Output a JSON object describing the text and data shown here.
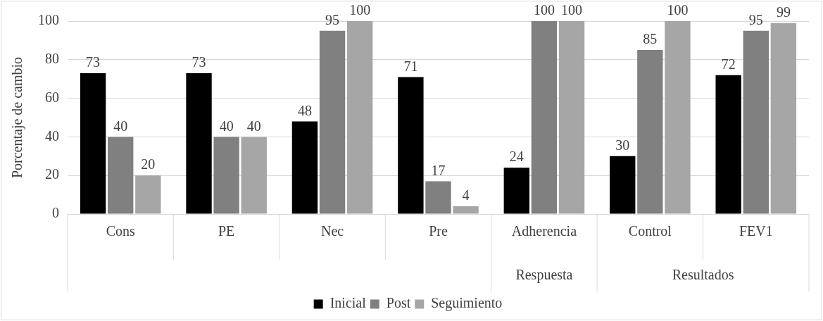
{
  "chart_data": {
    "type": "bar",
    "ylabel": "Porcentaje de cambio",
    "categories": [
      "Cons",
      "PE",
      "Nec",
      "Pre",
      "Adherencia",
      "Control",
      "FEV1"
    ],
    "series": [
      {
        "name": "Inicial",
        "color": "#000000",
        "values": [
          73,
          73,
          48,
          71,
          24,
          30,
          72
        ]
      },
      {
        "name": "Post",
        "color": "#808080",
        "values": [
          40,
          40,
          95,
          17,
          100,
          85,
          95
        ]
      },
      {
        "name": "Seguimiento",
        "color": "#a6a6a6",
        "values": [
          20,
          40,
          100,
          4,
          100,
          100,
          99
        ]
      }
    ],
    "ylim": [
      0,
      100
    ],
    "yticks": [
      0,
      20,
      40,
      60,
      80,
      100
    ],
    "grid": "y",
    "legend": "bottom",
    "data_labels": true,
    "annotations": [
      "Respuesta",
      "Resultados"
    ]
  }
}
